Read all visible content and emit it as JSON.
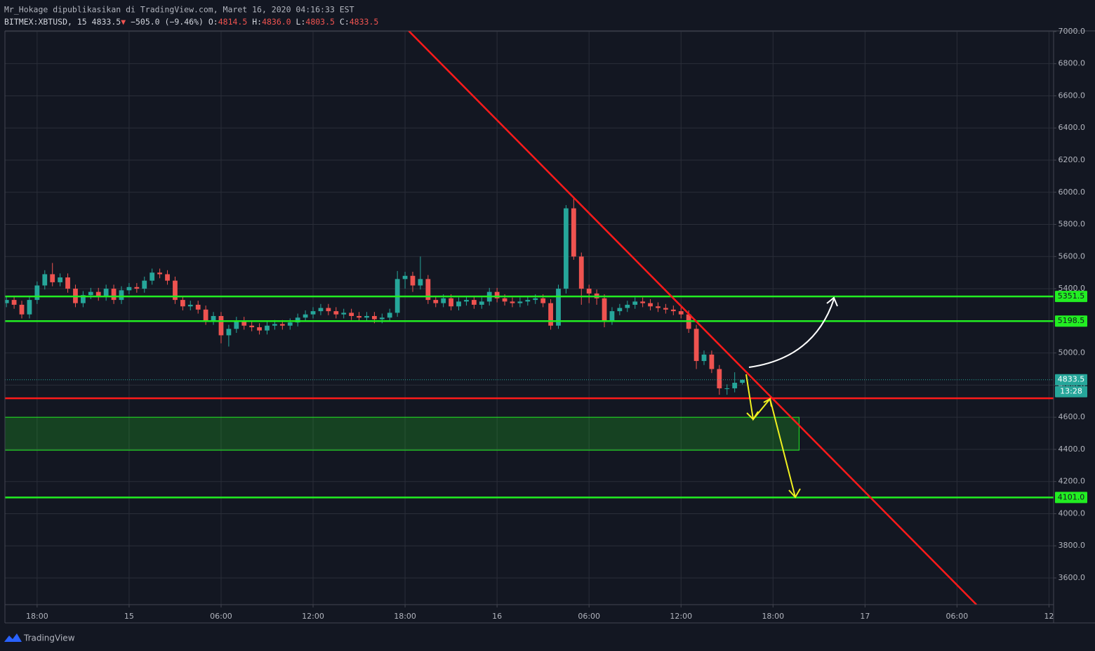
{
  "header": {
    "publisher": "Mr_Hokage dipublikasikan di TradingView.com, Maret 16, 2020 04:16:33 EST",
    "symbol": "BITMEX:XBTUSD, 15",
    "last": "4833.5",
    "arrow": "▼",
    "change": "−505.0 (−9.46%)",
    "ohlc": [
      [
        "O:",
        "4814.5"
      ],
      [
        "H:",
        "4836.0"
      ],
      [
        "L:",
        "4803.5"
      ],
      [
        "C:",
        "4833.5"
      ]
    ]
  },
  "footer": {
    "brand": "TradingView"
  },
  "chart_data": {
    "type": "candlestick",
    "x": [
      16,
      16.5,
      17,
      17.5,
      18,
      18.5,
      19,
      19.5,
      20,
      20.5,
      21,
      21.5,
      22,
      22.5,
      23,
      23.5,
      24,
      24.5,
      25,
      25.5,
      26,
      26.5,
      27,
      27.5,
      28,
      28.5,
      29,
      29.5,
      30,
      30.5,
      31,
      31.5,
      32,
      32.5,
      33,
      33.5,
      34,
      34.5,
      35,
      35.5,
      36,
      36.5,
      37,
      37.5,
      38,
      38.5,
      39,
      39.5,
      40,
      40.5,
      41,
      41.5,
      42,
      42.5,
      43,
      43.5,
      44,
      44.5,
      45,
      45.5,
      46,
      46.5,
      47,
      47.5,
      48,
      48.5,
      49,
      49.5,
      50,
      50.5,
      51,
      51.5,
      52,
      52.5,
      53,
      53.5,
      54,
      54.5,
      55,
      55.5,
      56,
      56.5,
      57,
      57.5,
      58,
      58.5,
      59,
      59.5,
      60,
      60.5,
      61,
      61.5,
      62,
      62.5,
      63,
      63.5,
      64
    ],
    "open": [
      5310,
      5330,
      5300,
      5240,
      5330,
      5420,
      5490,
      5440,
      5470,
      5400,
      5310,
      5360,
      5380,
      5350,
      5400,
      5330,
      5390,
      5410,
      5400,
      5450,
      5500,
      5490,
      5450,
      5330,
      5290,
      5300,
      5270,
      5200,
      5230,
      5110,
      5150,
      5200,
      5170,
      5160,
      5140,
      5170,
      5180,
      5170,
      5190,
      5220,
      5240,
      5260,
      5280,
      5260,
      5240,
      5250,
      5230,
      5220,
      5230,
      5210,
      5220,
      5250,
      5460,
      5480,
      5420,
      5460,
      5330,
      5310,
      5340,
      5290,
      5320,
      5330,
      5300,
      5320,
      5380,
      5340,
      5320,
      5310,
      5320,
      5330,
      5340,
      5310,
      5170,
      5400,
      5900,
      5600,
      5400,
      5370,
      5340,
      5200,
      5260,
      5280,
      5300,
      5320,
      5310,
      5290,
      5280,
      5270,
      5260,
      5240,
      5150,
      4950,
      4990,
      4900,
      4780,
      4780,
      4814.5
    ],
    "high": [
      5355,
      5355,
      5325,
      5355,
      5445,
      5515,
      5560,
      5495,
      5495,
      5425,
      5385,
      5405,
      5405,
      5425,
      5425,
      5415,
      5435,
      5435,
      5475,
      5525,
      5525,
      5515,
      5475,
      5355,
      5325,
      5325,
      5295,
      5255,
      5255,
      5175,
      5225,
      5225,
      5195,
      5185,
      5195,
      5205,
      5205,
      5215,
      5245,
      5265,
      5285,
      5305,
      5305,
      5285,
      5275,
      5275,
      5255,
      5255,
      5255,
      5245,
      5275,
      5510,
      5505,
      5505,
      5600,
      5485,
      5355,
      5365,
      5365,
      5345,
      5355,
      5355,
      5345,
      5405,
      5405,
      5365,
      5345,
      5345,
      5355,
      5365,
      5365,
      5335,
      5425,
      5920,
      5970,
      5625,
      5425,
      5395,
      5365,
      5285,
      5305,
      5325,
      5345,
      5345,
      5335,
      5315,
      5305,
      5295,
      5285,
      5265,
      5175,
      5015,
      5015,
      4925,
      4805,
      4880,
      4836
    ],
    "low": [
      5285,
      5275,
      5215,
      5215,
      5305,
      5395,
      5415,
      5415,
      5375,
      5285,
      5285,
      5335,
      5325,
      5325,
      5305,
      5305,
      5365,
      5375,
      5375,
      5425,
      5465,
      5425,
      5305,
      5265,
      5265,
      5245,
      5175,
      5175,
      5060,
      5040,
      5125,
      5145,
      5135,
      5115,
      5115,
      5145,
      5145,
      5145,
      5165,
      5195,
      5215,
      5235,
      5235,
      5215,
      5215,
      5205,
      5195,
      5195,
      5185,
      5185,
      5195,
      5225,
      5400,
      5380,
      5395,
      5305,
      5285,
      5285,
      5265,
      5265,
      5295,
      5275,
      5275,
      5295,
      5315,
      5295,
      5285,
      5285,
      5295,
      5305,
      5285,
      5145,
      5150,
      5370,
      5580,
      5300,
      5310,
      5300,
      5160,
      5175,
      5235,
      5255,
      5275,
      5285,
      5265,
      5255,
      5245,
      5235,
      5215,
      5125,
      4900,
      4925,
      4875,
      4740,
      4740,
      4755,
      4803.5
    ],
    "close": [
      5330,
      5300,
      5240,
      5330,
      5420,
      5490,
      5440,
      5470,
      5400,
      5310,
      5360,
      5380,
      5350,
      5400,
      5330,
      5390,
      5410,
      5400,
      5450,
      5500,
      5490,
      5450,
      5330,
      5290,
      5300,
      5270,
      5200,
      5230,
      5110,
      5150,
      5200,
      5170,
      5160,
      5140,
      5170,
      5180,
      5170,
      5190,
      5220,
      5240,
      5260,
      5280,
      5260,
      5240,
      5250,
      5230,
      5220,
      5230,
      5210,
      5220,
      5250,
      5460,
      5480,
      5420,
      5460,
      5330,
      5310,
      5340,
      5290,
      5320,
      5330,
      5300,
      5320,
      5380,
      5340,
      5320,
      5310,
      5320,
      5330,
      5340,
      5310,
      5170,
      5400,
      5900,
      5600,
      5400,
      5370,
      5340,
      5200,
      5260,
      5280,
      5300,
      5320,
      5310,
      5290,
      5280,
      5270,
      5260,
      5240,
      5150,
      4950,
      4990,
      4900,
      4780,
      4780,
      4814.5,
      4833.5
    ],
    "up_color": "#26a69a",
    "down_color": "#ef5350",
    "xlim": [
      15.9,
      84.3
    ],
    "ylim": [
      3434,
      7004
    ],
    "xticks": [
      {
        "value": 18,
        "label": "18:00"
      },
      {
        "value": 24,
        "label": "15"
      },
      {
        "value": 30,
        "label": "06:00"
      },
      {
        "value": 36,
        "label": "12:00"
      },
      {
        "value": 42,
        "label": "18:00"
      },
      {
        "value": 48,
        "label": "16"
      },
      {
        "value": 54,
        "label": "06:00"
      },
      {
        "value": 60,
        "label": "12:00"
      },
      {
        "value": 66,
        "label": "18:00"
      },
      {
        "value": 72,
        "label": "17"
      },
      {
        "value": 78,
        "label": "06:00"
      },
      {
        "value": 84,
        "label": "12"
      }
    ],
    "yticks": [
      {
        "value": 3600,
        "label": "3600.0"
      },
      {
        "value": 3800,
        "label": "3800.0"
      },
      {
        "value": 4000,
        "label": "4000.0"
      },
      {
        "value": 4200,
        "label": "4200.0"
      },
      {
        "value": 4400,
        "label": "4400.0"
      },
      {
        "value": 4600,
        "label": "4600.0"
      },
      {
        "value": 4800,
        "label": "4800.0"
      },
      {
        "value": 5000,
        "label": "5000.0"
      },
      {
        "value": 5200,
        "label": "5200.0"
      },
      {
        "value": 5400,
        "label": "5400.0"
      },
      {
        "value": 5600,
        "label": "5600.0"
      },
      {
        "value": 5800,
        "label": "5800.0"
      },
      {
        "value": 6000,
        "label": "6000.0"
      },
      {
        "value": 6200,
        "label": "6200.0"
      },
      {
        "value": 6400,
        "label": "6400.0"
      },
      {
        "value": 6600,
        "label": "6600.0"
      },
      {
        "value": 6800,
        "label": "6800.0"
      },
      {
        "value": 7000,
        "label": "7000.0"
      }
    ],
    "grid": true,
    "levels": [
      {
        "value": 5351.5,
        "color": "#22ee22"
      },
      {
        "value": 5198.5,
        "color": "#22ee22"
      },
      {
        "value": 4101,
        "label": "4101.0",
        "color": "#22ee22"
      },
      {
        "value": 4718,
        "color": "#ff1a1a"
      }
    ],
    "zone": {
      "x": [
        15.9,
        67.7
      ],
      "y": [
        4395,
        4600
      ],
      "color": "#22ee22"
    },
    "trendline": {
      "x": [
        42.24,
        79.27
      ],
      "y": [
        7004,
        3434
      ],
      "color": "#ff1a1a"
    },
    "last_price": {
      "value": 4833.5,
      "countdown": "13:28",
      "color": "#26a69a"
    }
  }
}
